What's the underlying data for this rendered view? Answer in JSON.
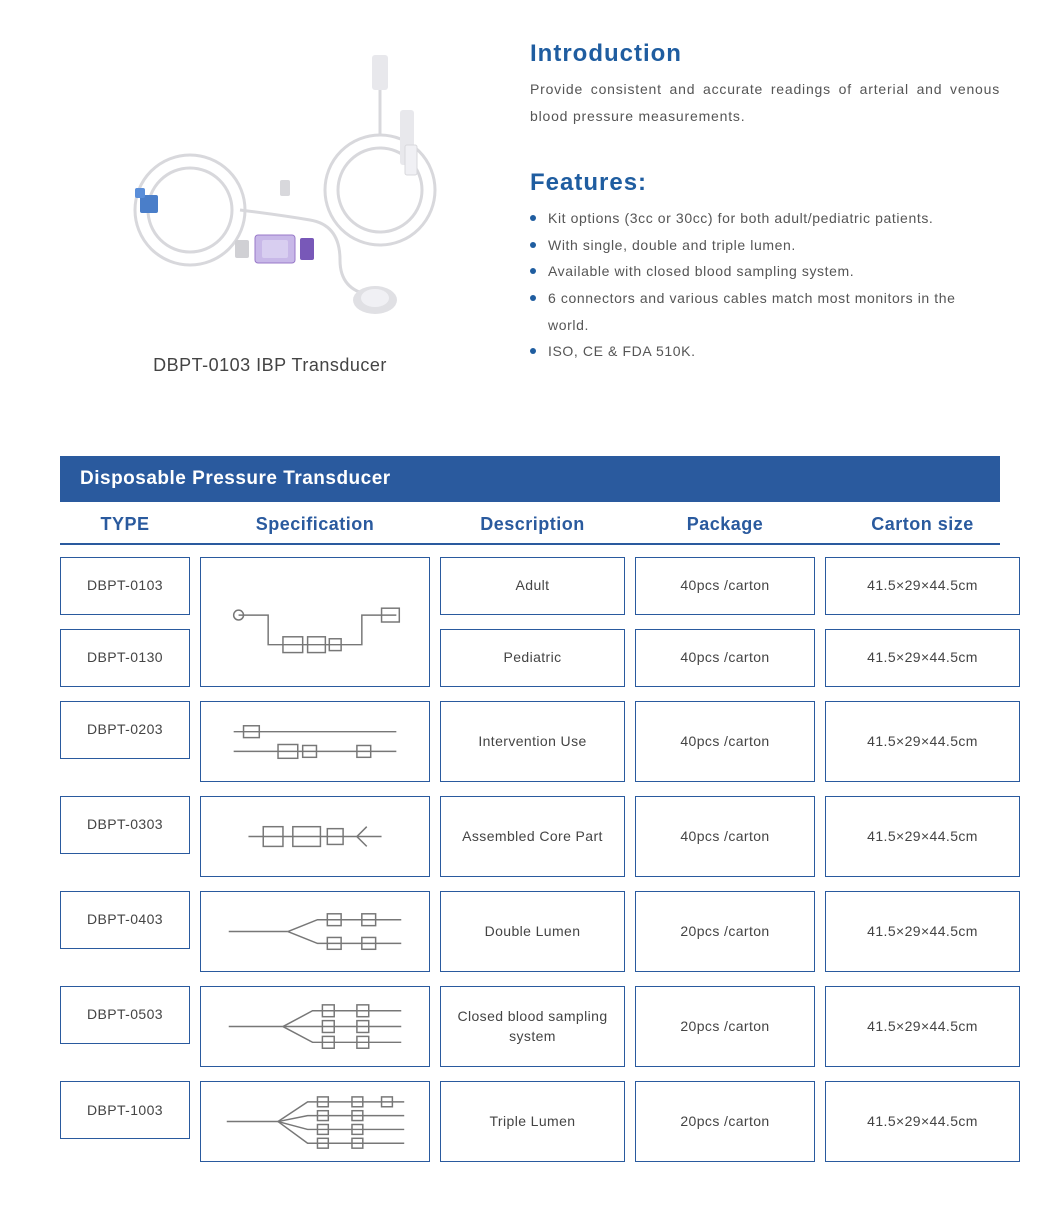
{
  "colors": {
    "primary": "#1f5da0",
    "headerBar": "#2a5a9e",
    "text": "#555555",
    "cellText": "#444444",
    "border": "#2a5a9e",
    "background": "#ffffff"
  },
  "product": {
    "caption": "DBPT-0103 IBP Transducer"
  },
  "intro": {
    "heading": "Introduction",
    "text": "Provide consistent and accurate readings of arterial and venous blood pressure measurements."
  },
  "features": {
    "heading": "Features:",
    "items": [
      "Kit options (3cc or 30cc) for both adult/pediatric patients.",
      "With single, double and triple lumen.",
      "Available with closed blood sampling system.",
      "6 connectors and various cables match most monitors in the world.",
      "ISO, CE & FDA 510K."
    ]
  },
  "table": {
    "title": "Disposable Pressure Transducer",
    "columns": [
      "TYPE",
      "Specification",
      "Description",
      "Package",
      "Carton  size"
    ],
    "groups": [
      {
        "types": [
          "DBPT-0103",
          "DBPT-0130"
        ],
        "spec_icon": "loop-transducer",
        "descriptions": [
          "Adult",
          "Pediatric"
        ],
        "packages": [
          "40pcs /carton",
          "40pcs /carton"
        ],
        "cartons": [
          "41.5×29×44.5cm",
          "41.5×29×44.5cm"
        ],
        "tall": true
      },
      {
        "types": [
          "DBPT-0203"
        ],
        "spec_icon": "intervention",
        "descriptions": [
          "Intervention Use"
        ],
        "packages": [
          "40pcs /carton"
        ],
        "cartons": [
          "41.5×29×44.5cm"
        ]
      },
      {
        "types": [
          "DBPT-0303"
        ],
        "spec_icon": "core-part",
        "descriptions": [
          "Assembled Core Part"
        ],
        "packages": [
          "40pcs /carton"
        ],
        "cartons": [
          "41.5×29×44.5cm"
        ]
      },
      {
        "types": [
          "DBPT-0403"
        ],
        "spec_icon": "double-lumen",
        "descriptions": [
          "Double Lumen"
        ],
        "packages": [
          "20pcs /carton"
        ],
        "cartons": [
          "41.5×29×44.5cm"
        ]
      },
      {
        "types": [
          "DBPT-0503"
        ],
        "spec_icon": "closed-sampling",
        "descriptions": [
          "Closed blood sampling system"
        ],
        "packages": [
          "20pcs /carton"
        ],
        "cartons": [
          "41.5×29×44.5cm"
        ]
      },
      {
        "types": [
          "DBPT-1003"
        ],
        "spec_icon": "triple-lumen",
        "descriptions": [
          "Triple Lumen"
        ],
        "packages": [
          "20pcs /carton"
        ],
        "cartons": [
          "41.5×29×44.5cm"
        ]
      }
    ]
  }
}
